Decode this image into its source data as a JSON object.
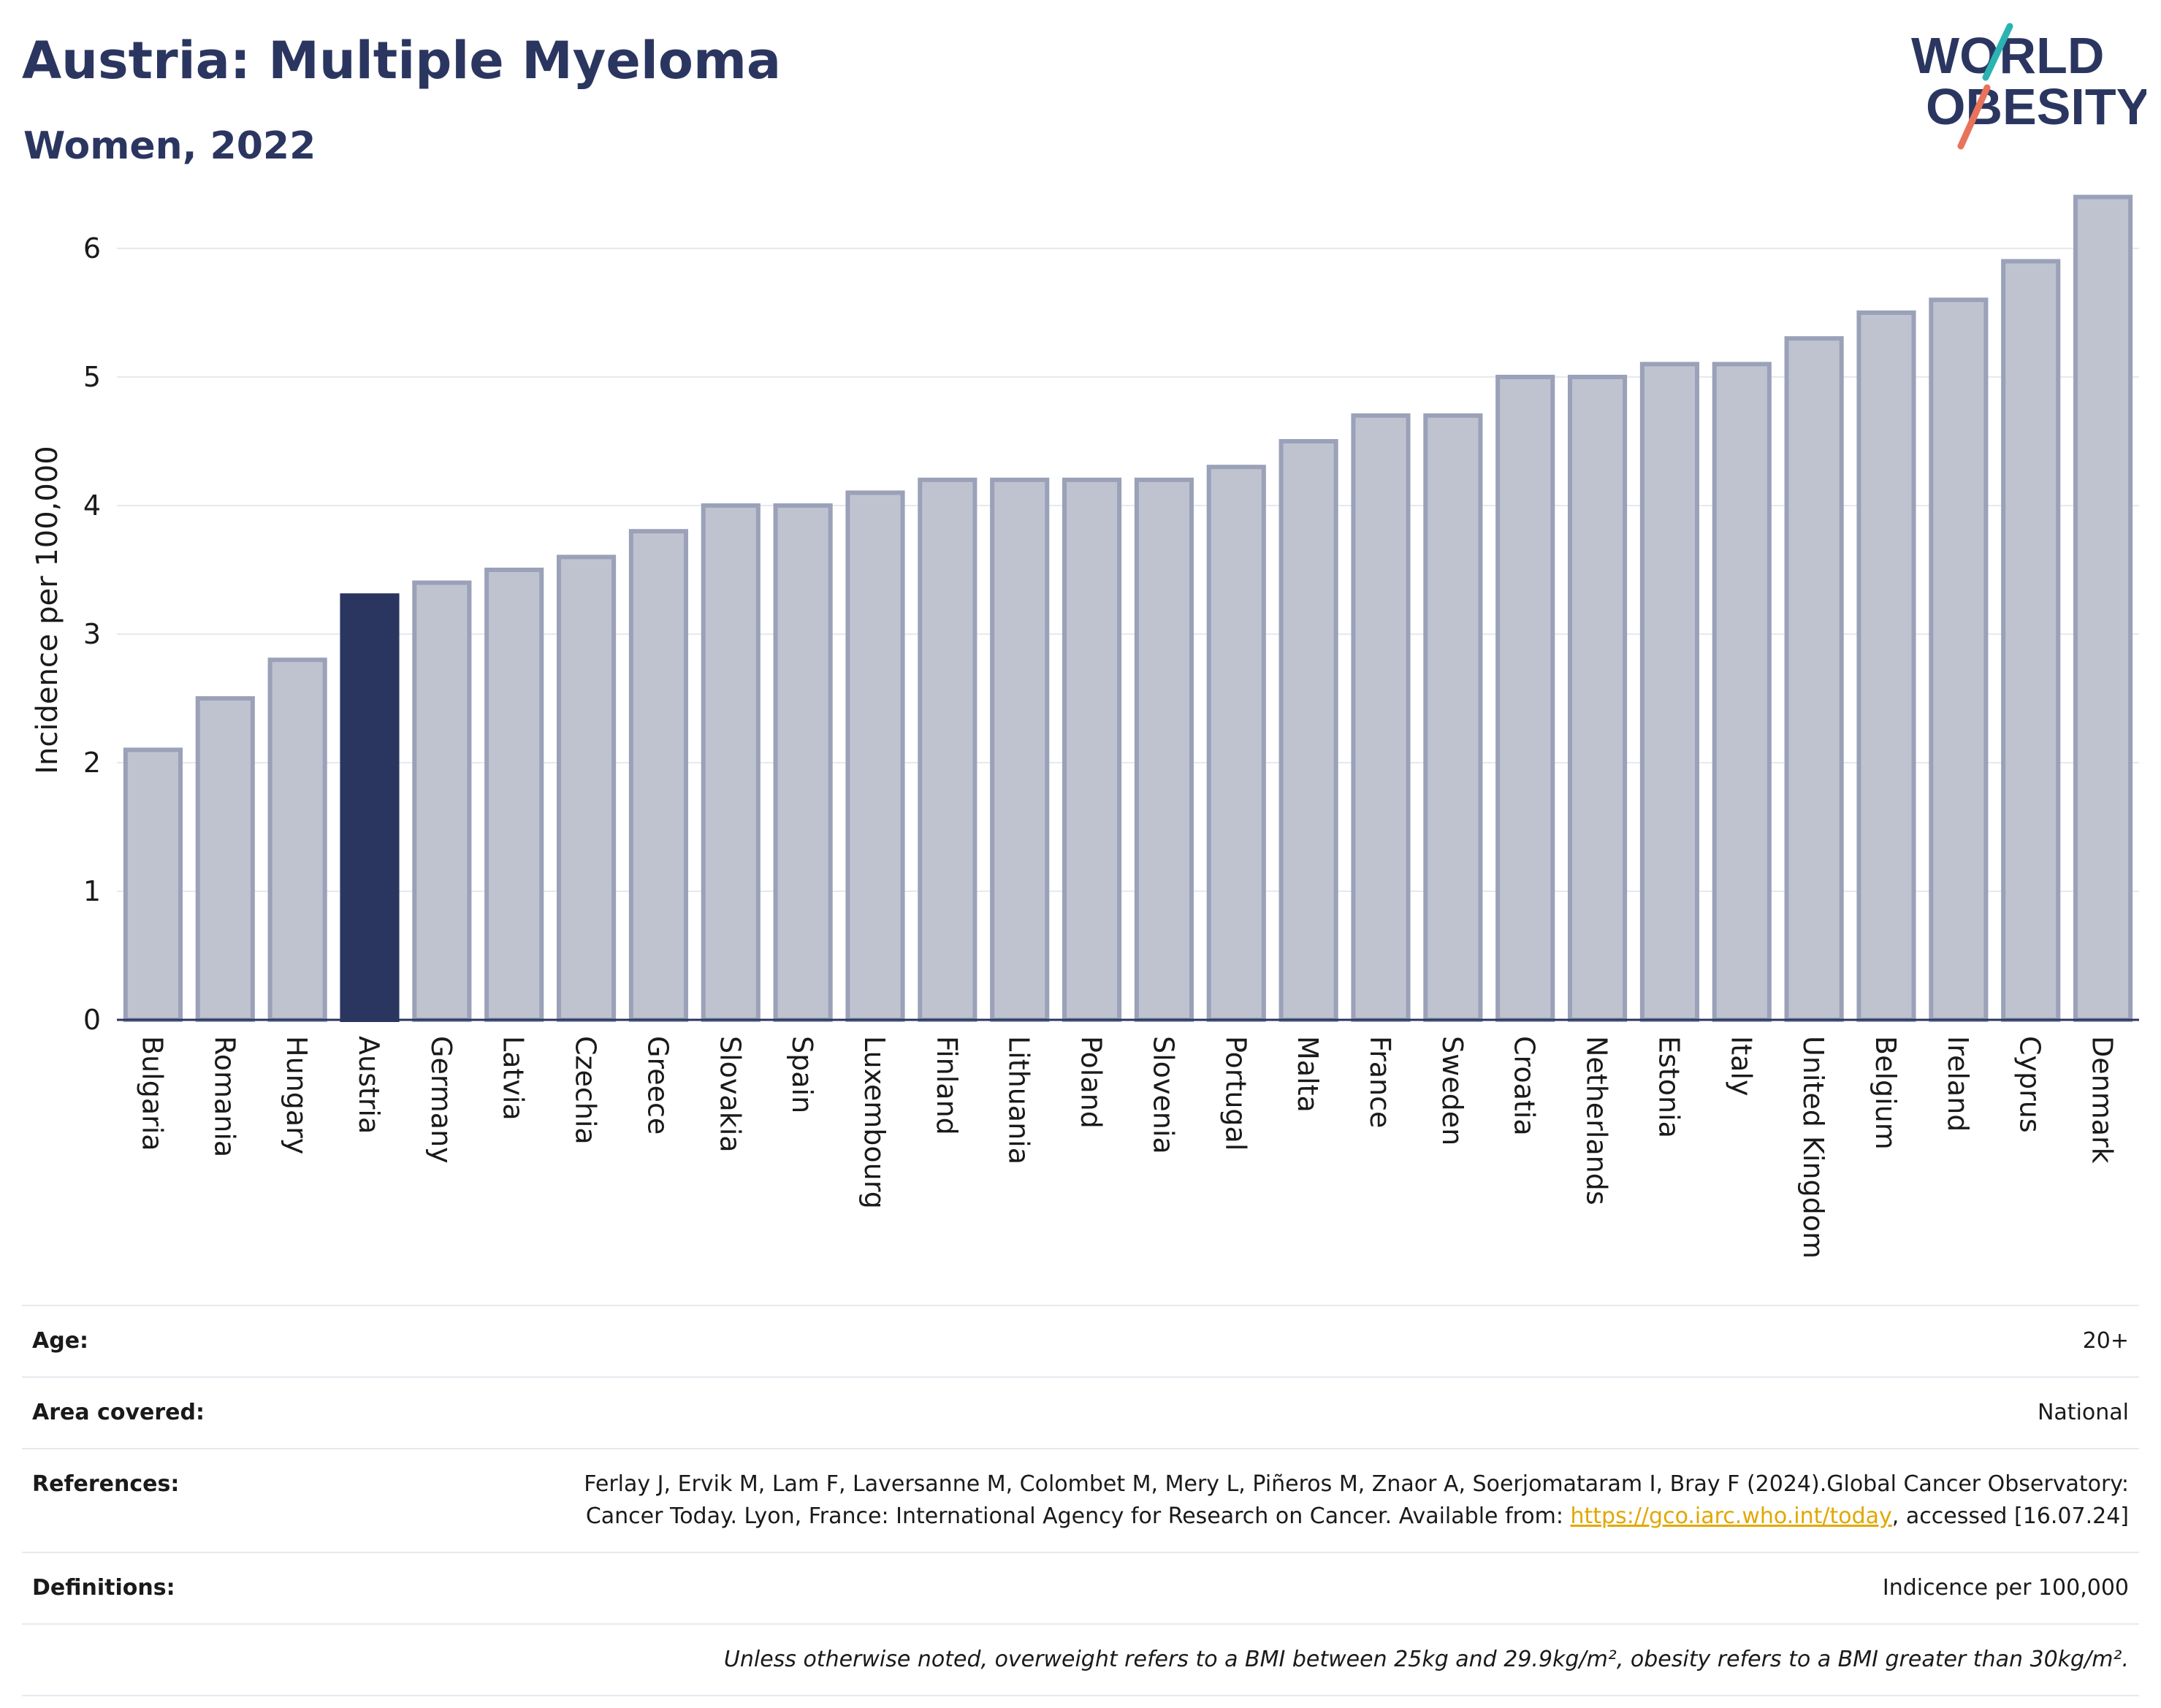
{
  "header": {
    "title": "Austria: Multiple Myeloma",
    "subtitle": "Women, 2022"
  },
  "logo": {
    "line1": "WORLD",
    "line2": "OBESITY",
    "colors": {
      "text": "#2b3660",
      "slash_teal": "#2bb3b1",
      "slash_coral": "#e8735a"
    }
  },
  "colors": {
    "highlight_bar": "#2b3660",
    "other_bar": "#bfc3d0",
    "other_bar_border": "#9aa1b8",
    "axis": "#2b3660",
    "grid": "#e6e9ef"
  },
  "chart_data": {
    "type": "bar",
    "ylabel": "Incidence per 100,000",
    "ylim": [
      0,
      6.5
    ],
    "yticks": [
      0,
      1,
      2,
      3,
      4,
      5,
      6
    ],
    "grid": true,
    "highlight": "Austria",
    "categories": [
      "Bulgaria",
      "Romania",
      "Hungary",
      "Austria",
      "Germany",
      "Latvia",
      "Czechia",
      "Greece",
      "Slovakia",
      "Spain",
      "Luxembourg",
      "Finland",
      "Lithuania",
      "Poland",
      "Slovenia",
      "Portugal",
      "Malta",
      "France",
      "Sweden",
      "Croatia",
      "Netherlands",
      "Estonia",
      "Italy",
      "United Kingdom",
      "Belgium",
      "Ireland",
      "Cyprus",
      "Denmark"
    ],
    "values": [
      2.1,
      2.5,
      2.8,
      3.3,
      3.4,
      3.5,
      3.6,
      3.8,
      4.0,
      4.0,
      4.1,
      4.2,
      4.2,
      4.2,
      4.2,
      4.3,
      4.5,
      4.7,
      4.7,
      5.0,
      5.0,
      5.1,
      5.1,
      5.3,
      5.5,
      5.6,
      5.9,
      6.4
    ]
  },
  "info": {
    "age_label": "Age:",
    "age_value": "20+",
    "area_label": "Area covered:",
    "area_value": "National",
    "references_label": "References:",
    "references_text": "Ferlay J, Ervik M, Lam F, Laversanne M, Colombet M, Mery L, Piñeros M, Znaor A, Soerjomataram I, Bray F (2024).Global Cancer Observatory: Cancer Today. Lyon, France: International Agency for Research on Cancer. Available from:",
    "references_link": "https://gco.iarc.who.int/today",
    "references_suffix": ", accessed [16.07.24]",
    "definitions_label": "Definitions:",
    "definitions_value": "Indicence per 100,000",
    "note": "Unless otherwise noted, overweight refers to a BMI between 25kg and 29.9kg/m², obesity refers to a BMI greater than 30kg/m²."
  }
}
